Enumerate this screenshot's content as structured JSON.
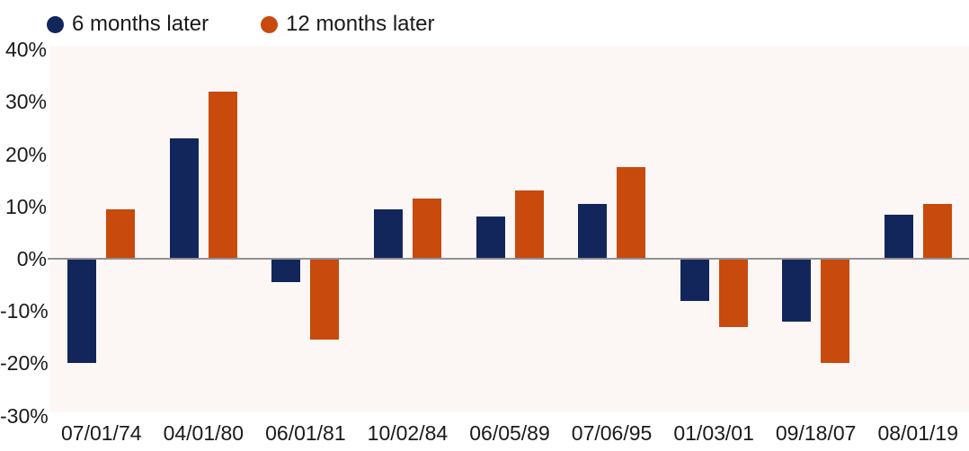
{
  "legend": {
    "items": [
      {
        "label": "6 months later",
        "color": "#13265c"
      },
      {
        "label": "12 months later",
        "color": "#c84a0d"
      }
    ]
  },
  "chart_data": {
    "type": "bar",
    "categories": [
      "07/01/74",
      "04/01/80",
      "06/01/81",
      "10/02/84",
      "06/05/89",
      "07/06/95",
      "01/03/01",
      "09/18/07",
      "08/01/19"
    ],
    "series": [
      {
        "name": "6 months later",
        "color": "#13265c",
        "values": [
          -20,
          23,
          -4.5,
          9.5,
          8,
          10.5,
          -8,
          -12,
          8.5
        ]
      },
      {
        "name": "12 months later",
        "color": "#c84a0d",
        "values": [
          9.5,
          32,
          -15.5,
          11.5,
          13,
          17.5,
          -13,
          -20,
          10.5
        ]
      }
    ],
    "y_ticks": [
      {
        "label": "40%",
        "value": 40
      },
      {
        "label": "30%",
        "value": 30
      },
      {
        "label": "20%",
        "value": 20
      },
      {
        "label": "10%",
        "value": 10
      },
      {
        "label": "0%",
        "value": 0
      },
      {
        "label": "-10%",
        "value": -10
      },
      {
        "label": "-20%",
        "value": -20
      },
      {
        "label": "-30%",
        "value": -30
      }
    ],
    "ylim": [
      -30.5,
      40.7
    ],
    "grid": false,
    "legend_position": "top-left",
    "colors": {
      "plot_bg": "#fcf7f5",
      "zero_line": "#919191",
      "text": "#1a1a1a",
      "page_bg": "#ffffff"
    }
  }
}
